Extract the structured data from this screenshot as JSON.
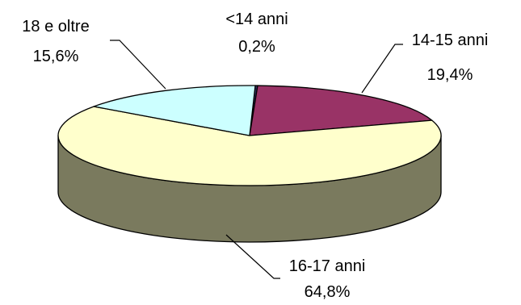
{
  "chart_data": {
    "type": "pie",
    "style": "3d",
    "title": "",
    "slices": [
      {
        "name": "<14 anni",
        "value": 0.2,
        "label": "0,2%",
        "color": "#333366"
      },
      {
        "name": "14-15 anni",
        "value": 19.4,
        "label": "19,4%",
        "color": "#993366"
      },
      {
        "name": "16-17 anni",
        "value": 64.8,
        "label": "64,8%",
        "color": "#FFFFCC"
      },
      {
        "name": "18 e oltre",
        "value": 15.6,
        "label": "15,6%",
        "color": "#CCFFFF"
      }
    ],
    "side_color": "#7A7A5E",
    "legend": "none"
  }
}
